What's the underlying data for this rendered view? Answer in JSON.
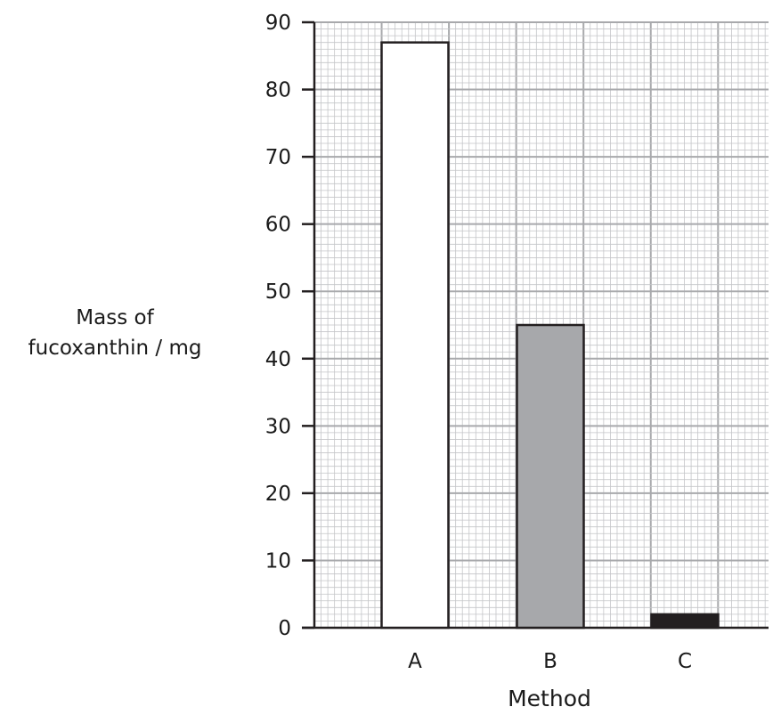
{
  "chart_data": {
    "type": "bar",
    "title": "",
    "xlabel": "Method",
    "ylabel_lines": [
      "Mass of",
      "fucoxanthin / mg"
    ],
    "categories": [
      "A",
      "B",
      "C"
    ],
    "values": [
      87,
      45,
      2
    ],
    "bar_colors": [
      "#ffffff",
      "#a7a8ab",
      "#231f20"
    ],
    "ylim": [
      0,
      90
    ],
    "yticks": [
      0,
      10,
      20,
      30,
      40,
      50,
      60,
      70,
      80,
      90
    ],
    "grid": true
  }
}
